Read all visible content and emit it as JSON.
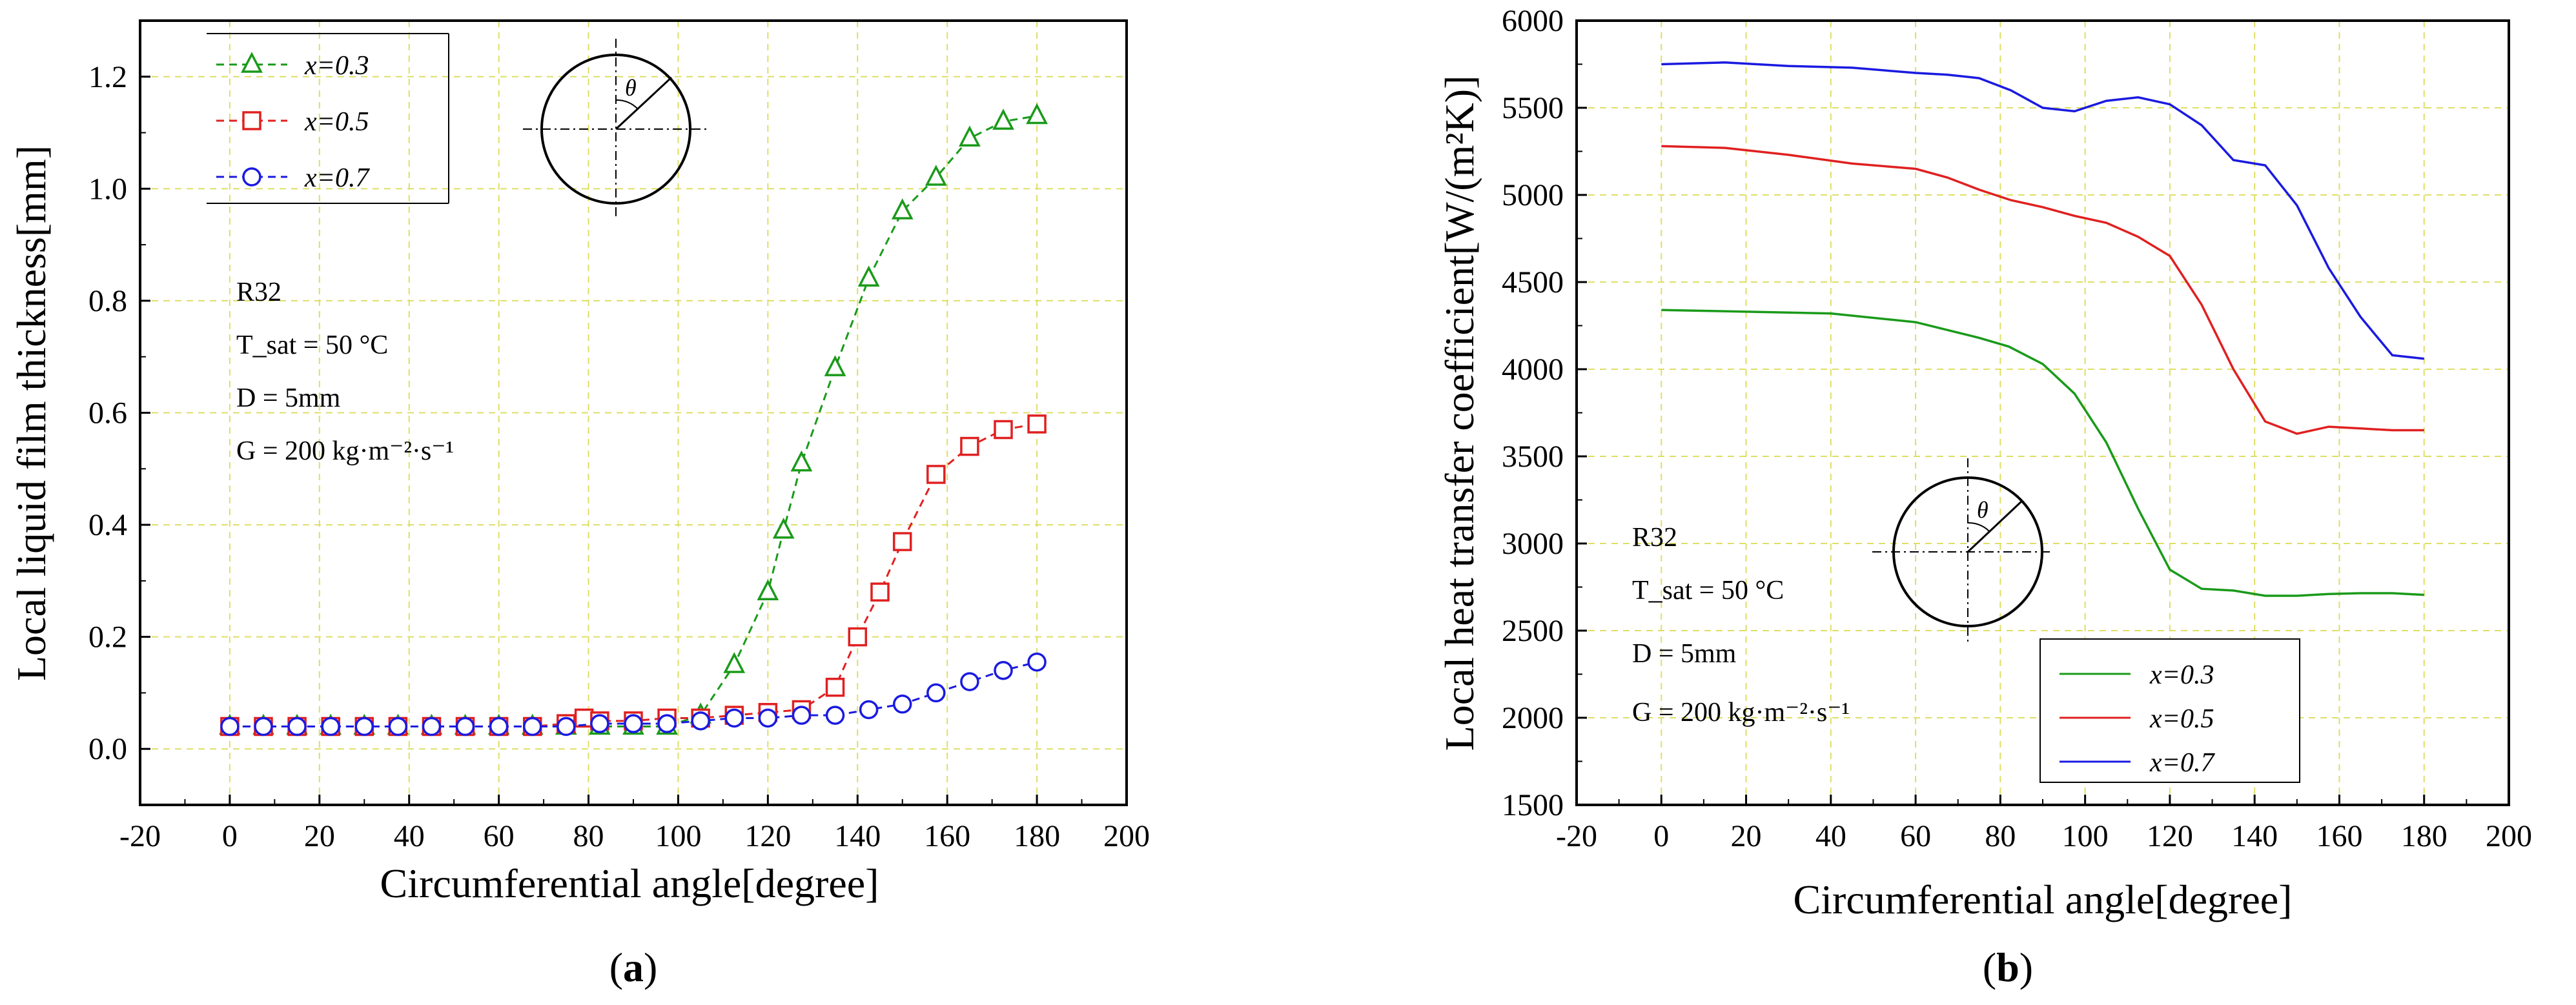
{
  "chart_data": [
    {
      "type": "line",
      "panel_label": "a",
      "ylabel": "Local liquid film thickness[mm]",
      "xlabel": "Circumferential angle[degree]",
      "xlim": [
        -20,
        200
      ],
      "ylim": [
        -0.1,
        1.3
      ],
      "xticks": [
        -20,
        0,
        20,
        40,
        60,
        80,
        100,
        120,
        140,
        160,
        180,
        200
      ],
      "yticks": [
        0.0,
        0.2,
        0.4,
        0.6,
        0.8,
        1.0,
        1.2
      ],
      "xtick_labels": [
        "-20",
        "0",
        "20",
        "40",
        "60",
        "80",
        "100",
        "120",
        "140",
        "160",
        "180",
        "200"
      ],
      "ytick_labels": [
        "0.0",
        "0.2",
        "0.4",
        "0.6",
        "0.8",
        "1.0",
        "1.2"
      ],
      "grid": true,
      "legend_position": "top-left",
      "conditions": [
        "R32",
        "T_sat = 50 °C",
        "D = 5mm",
        "G = 200 kg·m⁻²·s⁻¹"
      ],
      "theta_label": "θ",
      "series": [
        {
          "name": "x=0.3",
          "color": "#1a9a1a",
          "marker": "triangle",
          "dashed": true,
          "x": [
            0,
            7.5,
            15,
            22.5,
            30,
            37.5,
            45,
            52.5,
            60,
            67.5,
            75,
            82.5,
            90,
            97.5,
            105,
            112.5,
            120,
            123.5,
            127.5,
            135,
            142.5,
            150,
            157.5,
            165,
            172.5,
            180
          ],
          "y": [
            0.04,
            0.04,
            0.04,
            0.04,
            0.04,
            0.04,
            0.04,
            0.04,
            0.04,
            0.04,
            0.04,
            0.04,
            0.04,
            0.04,
            0.06,
            0.15,
            0.28,
            0.39,
            0.51,
            0.68,
            0.84,
            0.96,
            1.02,
            1.09,
            1.12,
            1.13
          ]
        },
        {
          "name": "x=0.5",
          "color": "#e02020",
          "marker": "square",
          "dashed": true,
          "x": [
            0,
            7.5,
            15,
            22.5,
            30,
            37.5,
            45,
            52.5,
            60,
            67.5,
            75,
            79,
            82.5,
            90,
            97.5,
            105,
            112.5,
            120,
            127.5,
            135,
            140,
            145,
            150,
            157.5,
            165,
            172.5,
            180
          ],
          "y": [
            0.04,
            0.04,
            0.04,
            0.04,
            0.04,
            0.04,
            0.04,
            0.04,
            0.04,
            0.04,
            0.045,
            0.055,
            0.05,
            0.05,
            0.055,
            0.055,
            0.06,
            0.065,
            0.07,
            0.11,
            0.2,
            0.28,
            0.37,
            0.49,
            0.54,
            0.57,
            0.58
          ]
        },
        {
          "name": "x=0.7",
          "color": "#1a1ae0",
          "marker": "circle",
          "dashed": true,
          "x": [
            0,
            7.5,
            15,
            22.5,
            30,
            37.5,
            45,
            52.5,
            60,
            67.5,
            75,
            82.5,
            90,
            97.5,
            105,
            112.5,
            120,
            127.5,
            135,
            142.5,
            150,
            157.5,
            165,
            172.5,
            180
          ],
          "y": [
            0.04,
            0.04,
            0.04,
            0.04,
            0.04,
            0.04,
            0.04,
            0.04,
            0.04,
            0.04,
            0.04,
            0.045,
            0.045,
            0.045,
            0.05,
            0.055,
            0.055,
            0.06,
            0.06,
            0.07,
            0.08,
            0.1,
            0.12,
            0.14,
            0.155
          ]
        }
      ]
    },
    {
      "type": "line",
      "panel_label": "b",
      "ylabel": "Local heat transfer coefficient[W/(m²K)]",
      "xlabel": "Circumferential angle[degree]",
      "xlim": [
        -20,
        200
      ],
      "ylim": [
        1500,
        6000
      ],
      "xticks": [
        -20,
        0,
        20,
        40,
        60,
        80,
        100,
        120,
        140,
        160,
        180,
        200
      ],
      "yticks": [
        1500,
        2000,
        2500,
        3000,
        3500,
        4000,
        4500,
        5000,
        5500,
        6000
      ],
      "xtick_labels": [
        "-20",
        "0",
        "20",
        "40",
        "60",
        "80",
        "100",
        "120",
        "140",
        "160",
        "180",
        "200"
      ],
      "ytick_labels": [
        "1500",
        "2000",
        "2500",
        "3000",
        "3500",
        "4000",
        "4500",
        "5000",
        "5500",
        "6000"
      ],
      "grid": true,
      "legend_position": "bottom-center",
      "conditions": [
        "R32",
        "T_sat = 50 °C",
        "D = 5mm",
        "G = 200 kg·m⁻²·s⁻¹"
      ],
      "theta_label": "θ",
      "series": [
        {
          "name": "x=0.3",
          "color": "#1a9a1a",
          "x": [
            0,
            20,
            40,
            60,
            75,
            82,
            90,
            97.5,
            105,
            112.5,
            120,
            127.5,
            135,
            142.5,
            150,
            157.5,
            165,
            172.5,
            180
          ],
          "y": [
            4340,
            4330,
            4320,
            4270,
            4180,
            4130,
            4030,
            3860,
            3580,
            3200,
            2850,
            2740,
            2730,
            2700,
            2700,
            2710,
            2715,
            2715,
            2705
          ]
        },
        {
          "name": "x=0.5",
          "color": "#e02020",
          "x": [
            0,
            15,
            30,
            45,
            60,
            67.5,
            75,
            82.5,
            90,
            97.5,
            105,
            112.5,
            120,
            127.5,
            135,
            142.5,
            150,
            157.5,
            165,
            172.5,
            180
          ],
          "y": [
            5280,
            5270,
            5230,
            5180,
            5150,
            5100,
            5030,
            4970,
            4930,
            4880,
            4840,
            4760,
            4650,
            4370,
            4000,
            3700,
            3630,
            3670,
            3660,
            3650,
            3650
          ]
        },
        {
          "name": "x=0.7",
          "color": "#1a1ae0",
          "x": [
            0,
            15,
            30,
            45,
            60,
            67.5,
            75,
            82.5,
            90,
            97.5,
            105,
            112.5,
            120,
            127.5,
            135,
            142.5,
            150,
            157.5,
            165,
            172.5,
            180
          ],
          "y": [
            5750,
            5760,
            5740,
            5730,
            5700,
            5690,
            5670,
            5600,
            5500,
            5480,
            5540,
            5560,
            5520,
            5400,
            5200,
            5170,
            4940,
            4580,
            4300,
            4080,
            4060
          ]
        }
      ]
    }
  ]
}
